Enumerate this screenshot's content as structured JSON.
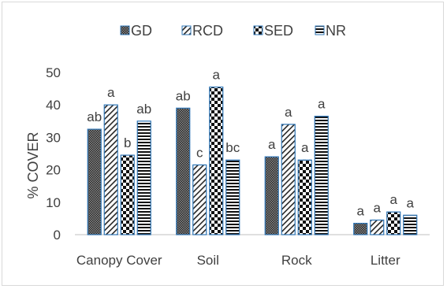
{
  "chart_data": {
    "type": "bar",
    "ylabel": "% COVER",
    "ylim": [
      0,
      50
    ],
    "yticks": [
      0,
      10,
      20,
      30,
      40,
      50
    ],
    "categories": [
      "Canopy Cover",
      "Soil",
      "Rock",
      "Litter"
    ],
    "legend_position": "top",
    "series": [
      {
        "name": "GD",
        "pattern": "dense-dots",
        "values": [
          32.5,
          39,
          24,
          3.5
        ],
        "letters": [
          "ab",
          "ab",
          "a",
          "a"
        ]
      },
      {
        "name": "RCD",
        "pattern": "diagonal-hatch",
        "values": [
          40,
          21.5,
          34,
          4.5
        ],
        "letters": [
          "a",
          "c",
          "a",
          "a"
        ]
      },
      {
        "name": "SED",
        "pattern": "checker",
        "values": [
          24.5,
          45.5,
          23,
          7
        ],
        "letters": [
          "b",
          "a",
          "a",
          "a"
        ]
      },
      {
        "name": "NR",
        "pattern": "horizontal-lines",
        "values": [
          35,
          23,
          36.5,
          6
        ],
        "letters": [
          "ab",
          "bc",
          "a",
          "a"
        ]
      }
    ],
    "colors": {
      "outline": "#2e75b6",
      "fill_dark": "#262626",
      "axis": "#bfbfbf",
      "text": "#404040"
    }
  }
}
